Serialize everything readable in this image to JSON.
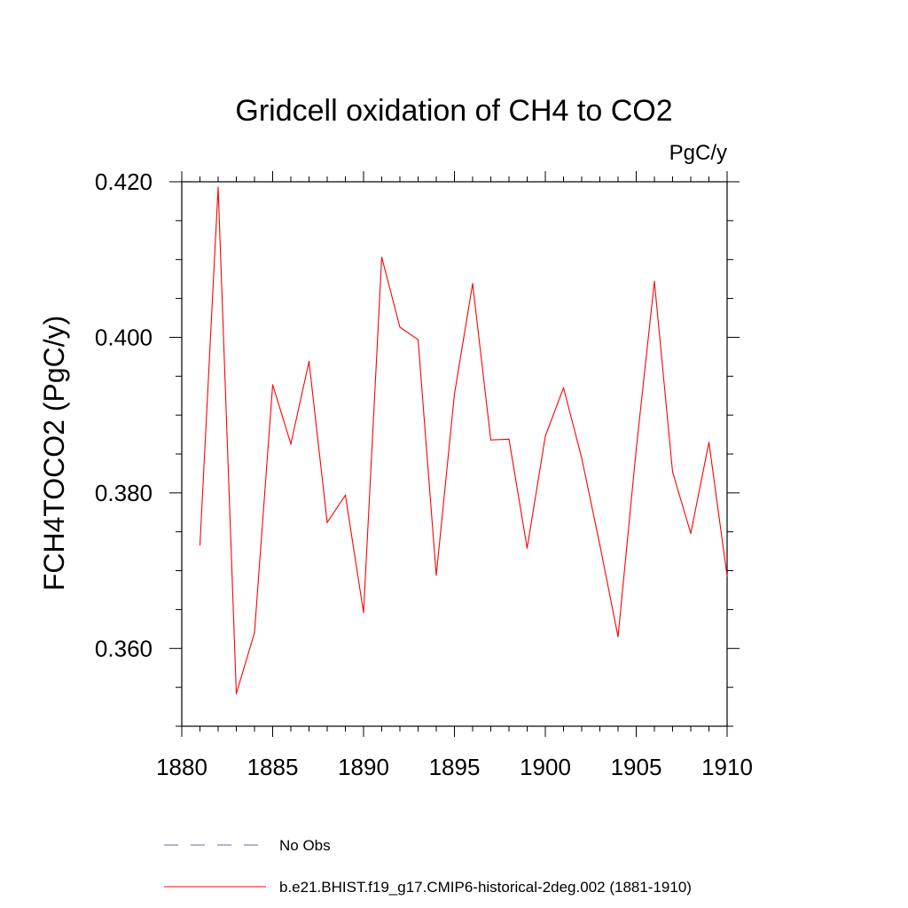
{
  "chart_data": {
    "type": "line",
    "title": "Gridcell oxidation of CH4 to CO2",
    "units_label": "PgC/y",
    "ylabel": "FCH4TOCO2  (PgC/y)",
    "xlabel": "",
    "xlim": [
      1880,
      1910
    ],
    "ylim": [
      0.35,
      0.42
    ],
    "x_ticks": [
      1880,
      1885,
      1890,
      1895,
      1900,
      1905,
      1910
    ],
    "x_tick_labels": [
      "1880",
      "1885",
      "1890",
      "1895",
      "1900",
      "1905",
      "1910"
    ],
    "y_ticks": [
      0.36,
      0.38,
      0.4,
      0.42
    ],
    "y_tick_labels": [
      "0.360",
      "0.380",
      "0.400",
      "0.420"
    ],
    "x_minor_step": 1,
    "y_minor_step": 0.005,
    "grid": false,
    "legend_position": "bottom",
    "series": [
      {
        "name": "b.e21.BHIST.f19_g17.CMIP6-historical-2deg.002 (1881-1910)",
        "color": "#ff0000",
        "style": "solid",
        "x": [
          1881,
          1882,
          1883,
          1884,
          1885,
          1886,
          1887,
          1888,
          1889,
          1890,
          1891,
          1892,
          1893,
          1894,
          1895,
          1896,
          1897,
          1898,
          1899,
          1900,
          1901,
          1902,
          1903,
          1904,
          1905,
          1906,
          1907,
          1908,
          1909,
          1910
        ],
        "values": [
          0.3733,
          0.4193,
          0.3542,
          0.362,
          0.3939,
          0.3863,
          0.3969,
          0.3762,
          0.3797,
          0.3646,
          0.4103,
          0.4013,
          0.3997,
          0.3694,
          0.3927,
          0.4069,
          0.3868,
          0.3869,
          0.3729,
          0.3873,
          0.3935,
          0.3845,
          0.3733,
          0.3615,
          0.3856,
          0.4072,
          0.3827,
          0.3748,
          0.3865,
          0.3693
        ]
      }
    ],
    "legend": [
      {
        "label": "No Obs",
        "color": "#6666cc",
        "style": "dashed"
      },
      {
        "label": "b.e21.BHIST.f19_g17.CMIP6-historical-2deg.002 (1881-1910)",
        "color": "#ff0000",
        "style": "solid"
      }
    ]
  }
}
